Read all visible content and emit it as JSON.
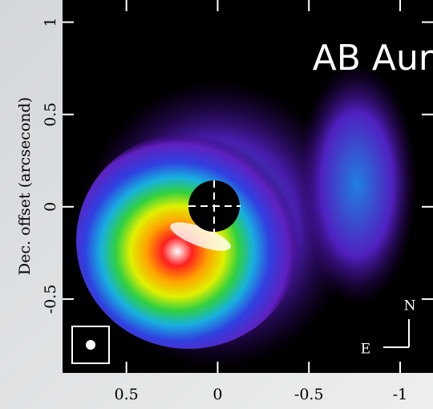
{
  "chart_data": {
    "type": "image",
    "title": "AB Aur",
    "ylabel": "Dec. offset (arcsecond)",
    "xlim": [
      0.85,
      -1.18
    ],
    "ylim": [
      -0.9,
      1.12
    ],
    "xticks": [
      0.5,
      0,
      -0.5,
      -1
    ],
    "yticks": [
      -0.5,
      0,
      0.5,
      1
    ],
    "compass": {
      "north": "N",
      "east": "E"
    }
  }
}
